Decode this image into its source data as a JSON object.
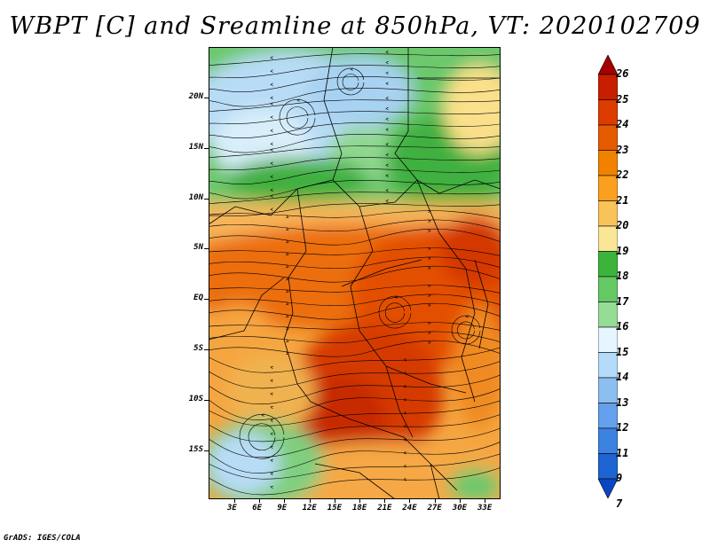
{
  "title": "WBPT [C] and Sreamline at 850hPa, VT: 2020102709",
  "credit": "GrADS: IGES/COLA",
  "map": {
    "lat_labels": [
      "20N",
      "15N",
      "10N",
      "5N",
      "EQ",
      "5S",
      "10S",
      "15S"
    ],
    "lon_labels": [
      "3E",
      "6E",
      "9E",
      "12E",
      "15E",
      "18E",
      "21E",
      "24E",
      "27E",
      "30E",
      "33E"
    ]
  },
  "colorbar": {
    "labels": [
      "26",
      "25",
      "24",
      "23",
      "22",
      "21",
      "20",
      "19",
      "18",
      "17",
      "16",
      "15",
      "14",
      "13",
      "12",
      "11",
      "9",
      "7"
    ],
    "colors": [
      "#a50000",
      "#c81e00",
      "#dc3c00",
      "#e65a00",
      "#f08200",
      "#faa01e",
      "#fac35a",
      "#fae696",
      "#3cb43c",
      "#64c864",
      "#96dc96",
      "#e6f5ff",
      "#b4dcfa",
      "#8cbef0",
      "#64a0eb",
      "#3c82e1",
      "#1e64d2",
      "#0a46c3"
    ]
  }
}
